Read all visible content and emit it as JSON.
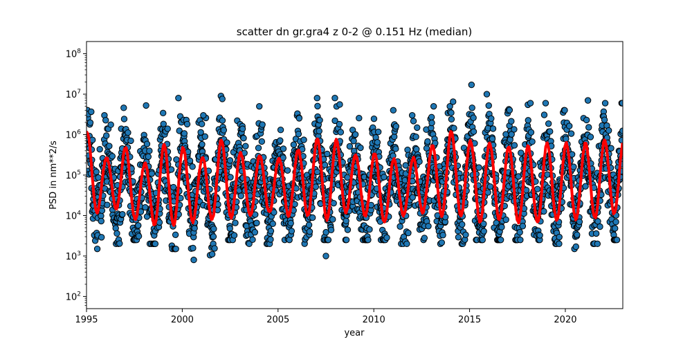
{
  "chart_data": {
    "type": "scatter",
    "title": "scatter dn gr.gra4 z 0-2 @ 0.151 Hz (median)",
    "xlabel": "year",
    "ylabel": "PSD in nm**2/s",
    "xlim": [
      1995,
      2023
    ],
    "ylim": [
      50,
      200000000
    ],
    "yscale": "log",
    "grid": false,
    "x_ticks": [
      1995,
      2000,
      2005,
      2010,
      2015,
      2020
    ],
    "x_tick_labels": [
      "1995",
      "2000",
      "2005",
      "2010",
      "2015",
      "2020"
    ],
    "y_ticks": [
      100,
      1000,
      10000,
      100000,
      1000000,
      10000000,
      100000000
    ],
    "y_tick_exponents": [
      "2",
      "3",
      "4",
      "5",
      "6",
      "7",
      "8"
    ],
    "y_tick_base": "10",
    "series": [
      {
        "kind": "scatter",
        "color": "#1f77b4",
        "edgecolor": "#000000",
        "summer_low_trough": [
          1500,
          2000,
          2500,
          2000,
          1500,
          1500,
          1000,
          2500,
          2000,
          2000,
          2500,
          2000,
          2500,
          2500,
          2500,
          2500,
          2000,
          2500,
          2000,
          2000,
          2500,
          2500,
          2500,
          2500,
          2000,
          1500,
          2000,
          2500
        ],
        "winter_peak": [
          4000000,
          5000000,
          8000000,
          6000000,
          5000000,
          8000000,
          4000000,
          9000000,
          6000000,
          5000000,
          4000000,
          8000000,
          8000000,
          6000000,
          5000000,
          3000000,
          4000000,
          3000000,
          5000000,
          7000000,
          6000000,
          6000000,
          5000000,
          6000000,
          4000000,
          5000000,
          7000000,
          6000000
        ],
        "outliers": [
          {
            "x": 1999.8,
            "y": 8000000
          },
          {
            "x": 2001.1,
            "y": 3000000
          },
          {
            "x": 2007.5,
            "y": 1000
          },
          {
            "x": 2015.1,
            "y": 17000000
          },
          {
            "x": 2015.9,
            "y": 10000000
          },
          {
            "x": 2000.6,
            "y": 800
          }
        ]
      },
      {
        "kind": "line",
        "name": "median",
        "color": "#ff0000",
        "years": [
          1995,
          1996,
          1997,
          1998,
          1999,
          2000,
          2001,
          2002,
          2003,
          2004,
          2005,
          2006,
          2007,
          2008,
          2009,
          2010,
          2011,
          2012,
          2013,
          2014,
          2015,
          2016,
          2017,
          2018,
          2019,
          2020,
          2021,
          2022
        ],
        "winter_peak": [
          1200000,
          250000,
          500000,
          180000,
          550000,
          500000,
          250000,
          750000,
          350000,
          300000,
          250000,
          400000,
          800000,
          750000,
          300000,
          350000,
          250000,
          250000,
          500000,
          1200000,
          700000,
          600000,
          500000,
          500000,
          600000,
          600000,
          600000,
          700000
        ],
        "summer_trough": [
          12000,
          15000,
          8000,
          6000,
          6000,
          7000,
          8000,
          9000,
          10000,
          12000,
          10000,
          10000,
          8000,
          12000,
          10000,
          7000,
          10000,
          12000,
          10000,
          10000,
          7000,
          8000,
          7000,
          7000,
          8000,
          8000,
          9000,
          11000
        ],
        "end_value": 400000
      }
    ]
  }
}
